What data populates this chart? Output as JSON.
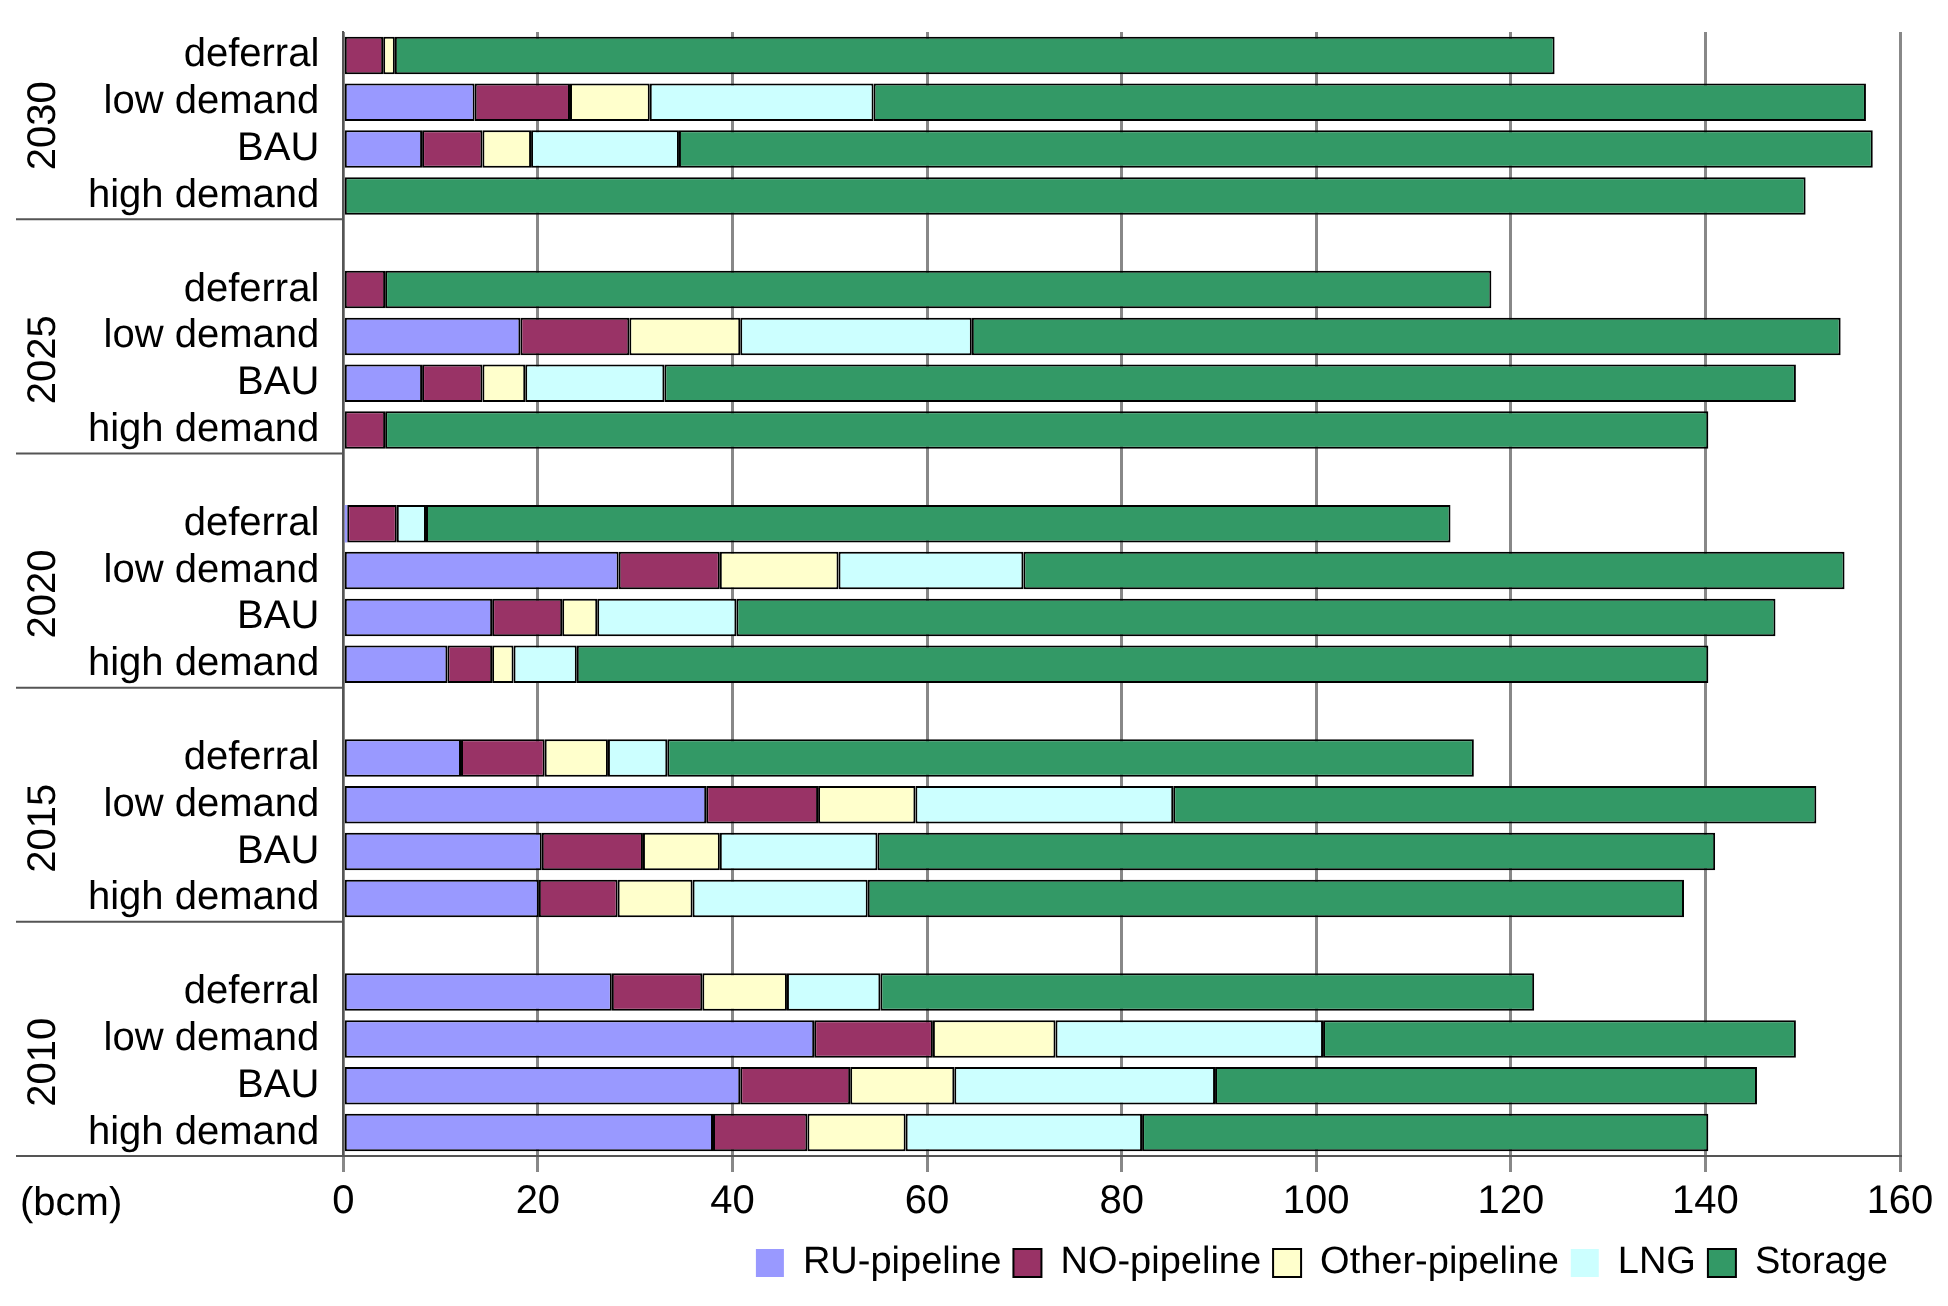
{
  "chart_data": {
    "type": "bar",
    "orientation": "horizontal",
    "stacked": true,
    "categories": [
      "deferral",
      "low demand",
      "BAU",
      "high demand",
      null,
      "deferral",
      "low demand",
      "BAU",
      "high demand",
      null,
      "deferral",
      "low demand",
      "BAU",
      "high demand",
      null,
      "deferral",
      "low demand",
      "BAU",
      "high demand",
      null,
      "deferral",
      "low demand",
      "BAU",
      "high demand"
    ],
    "series": [
      {
        "name": "RU-pipeline",
        "color": "#9999ff",
        "values": [
          0,
          13.5,
          8.1,
          0,
          null,
          0,
          18.2,
          8.1,
          0,
          null,
          0.4,
          28.3,
          15.3,
          10.7,
          null,
          12.1,
          37.3,
          20.4,
          20.1,
          null,
          27.6,
          48.4,
          40.8,
          38
        ]
      },
      {
        "name": "NO-pipeline",
        "color": "#993366",
        "values": [
          4.1,
          9.8,
          6.2,
          0,
          null,
          4.3,
          11.2,
          6.2,
          4.3,
          null,
          5.1,
          10.4,
          7.2,
          4.6,
          null,
          8.6,
          11.5,
          10.4,
          8.1,
          null,
          9.3,
          12.2,
          11.3,
          9.7
        ]
      },
      {
        "name": "Other-pipeline",
        "color": "#ffffcc",
        "values": [
          1.2,
          8.2,
          5,
          0,
          null,
          0,
          11.4,
          4.4,
          0,
          null,
          0,
          12.2,
          3.6,
          2.2,
          null,
          6.5,
          10,
          7.9,
          7.7,
          null,
          8.7,
          12.6,
          10.7,
          10.1
        ]
      },
      {
        "name": "LNG",
        "color": "#ccffff",
        "values": [
          0,
          23,
          15.2,
          0,
          null,
          0,
          23.8,
          14.3,
          0,
          null,
          3,
          19,
          14.3,
          6.5,
          null,
          6.1,
          26.5,
          16.2,
          18,
          null,
          9.6,
          27.5,
          26.8,
          24.3
        ]
      },
      {
        "name": "Storage",
        "color": "#339966",
        "values": [
          119.2,
          102,
          122.7,
          150.3,
          null,
          113.7,
          89.3,
          116.3,
          136,
          null,
          105.3,
          84.4,
          106.8,
          116.3,
          null,
          82.9,
          66.1,
          86.1,
          83.9,
          null,
          67.2,
          48.6,
          55.7,
          58.2
        ]
      }
    ],
    "xlim": [
      0,
      160
    ],
    "xticks": [
      0,
      20,
      40,
      60,
      80,
      100,
      120,
      140,
      160
    ],
    "grid": "x",
    "legend": "bottom right",
    "annotations": [
      "2030",
      "2025",
      "2020",
      "2015",
      "2010",
      "(bcm)"
    ]
  }
}
